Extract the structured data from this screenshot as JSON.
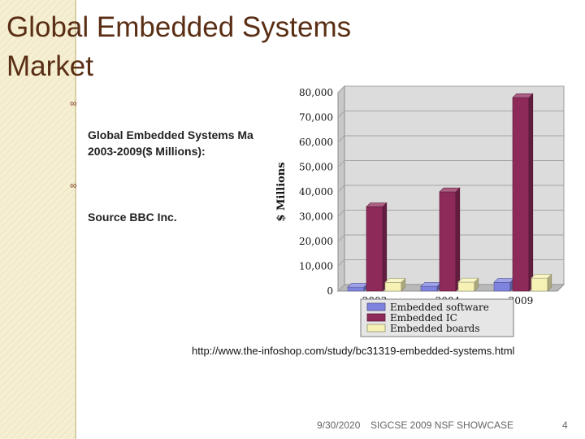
{
  "slide": {
    "title": "Global Embedded Systems\nMarket",
    "bullets": [
      {
        "icon": "loop-bullet-icon",
        "text": "Global Embedded Systems Ma\n2003-2009($ Millions):"
      },
      {
        "icon": "loop-bullet-icon",
        "text": "Source BBC Inc."
      }
    ],
    "source_url": "http://www.the-infoshop.com/study/bc31319-embedded-systems.html",
    "footer": {
      "date": "9/30/2020",
      "text": "SIGCSE 2009 NSF SHOWCASE",
      "page": "4"
    }
  },
  "chart_data": {
    "type": "bar",
    "ylabel": "$ Millions",
    "ylim": [
      0,
      80000
    ],
    "yticks": [
      "0",
      "10,000",
      "20,000",
      "30,000",
      "40,000",
      "50,000",
      "60,000",
      "70,000",
      "80,000"
    ],
    "categories": [
      "2003",
      "2004",
      "2009"
    ],
    "series": [
      {
        "name": "Embedded software",
        "color": "#7f83e0",
        "values": [
          1600,
          1900,
          3500
        ]
      },
      {
        "name": "Embedded IC",
        "color": "#8e2a5a",
        "values": [
          34000,
          40000,
          78000
        ]
      },
      {
        "name": "Embedded boards",
        "color": "#f6f1b4",
        "values": [
          3500,
          3600,
          5200
        ]
      }
    ],
    "grid": true,
    "legend": "bottom"
  }
}
